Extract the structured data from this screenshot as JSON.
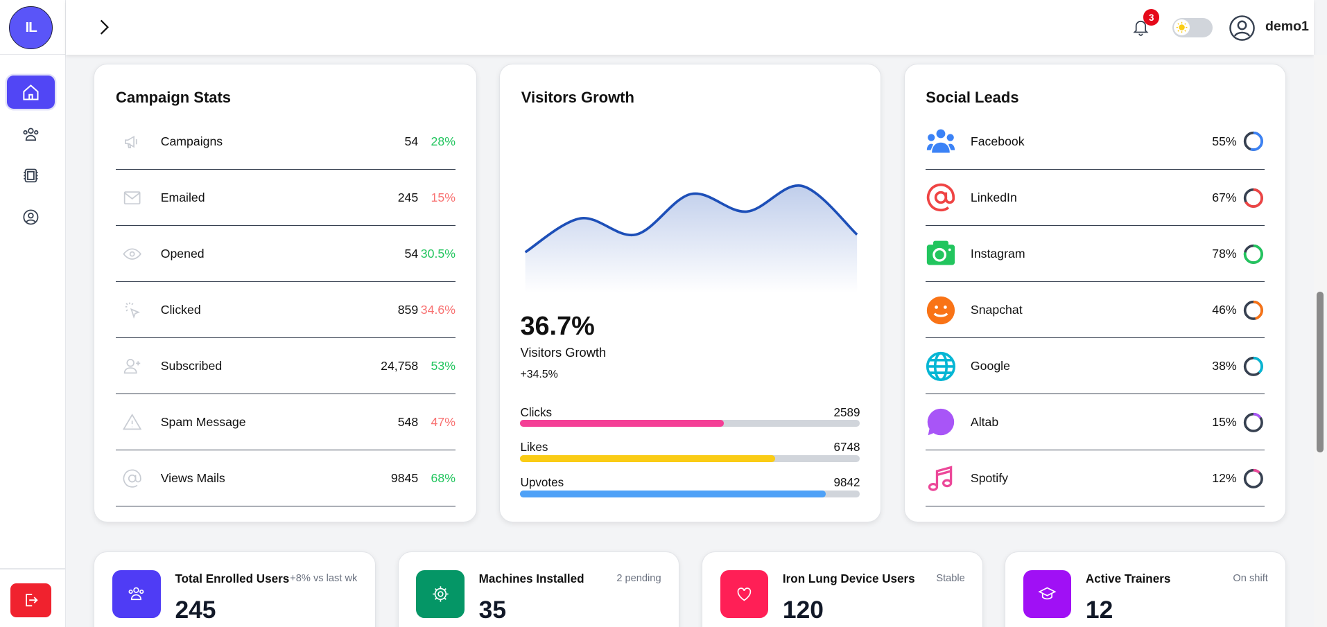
{
  "app": {
    "logo_text": "IL",
    "user_name": "demo1",
    "notification_count": "3",
    "theme": "light"
  },
  "sidebar": {
    "items": [
      {
        "icon": "home-icon",
        "active": true
      },
      {
        "icon": "users-icon"
      },
      {
        "icon": "chip-icon"
      },
      {
        "icon": "user-circle-icon"
      }
    ],
    "logout_icon": "logout-icon"
  },
  "campaign": {
    "title": "Campaign Stats",
    "rows": [
      {
        "icon": "megaphone-icon",
        "label": "Campaigns",
        "value": "54",
        "pct": "28%",
        "color": "#22c55e"
      },
      {
        "icon": "mail-icon",
        "label": "Emailed",
        "value": "245",
        "pct": "15%",
        "color": "#f87171"
      },
      {
        "icon": "eye-icon",
        "label": "Opened",
        "value": "54",
        "pct": "30.5%",
        "color": "#22c55e"
      },
      {
        "icon": "click-icon",
        "label": "Clicked",
        "value": "859",
        "pct": "34.6%",
        "color": "#f87171"
      },
      {
        "icon": "user-plus-icon",
        "label": "Subscribed",
        "value": "24,758",
        "pct": "53%",
        "color": "#22c55e"
      },
      {
        "icon": "warning-icon",
        "label": "Spam Message",
        "value": "548",
        "pct": "47%",
        "color": "#f87171"
      },
      {
        "icon": "at-icon",
        "label": "Views Mails",
        "value": "9845",
        "pct": "68%",
        "color": "#22c55e"
      }
    ]
  },
  "visitors": {
    "title": "Visitors Growth",
    "big": "36.7%",
    "label": "Visitors Growth",
    "delta": "+34.5%",
    "bars": [
      {
        "label": "Clicks",
        "value": "2589",
        "fill": 60,
        "color": "#f43f96"
      },
      {
        "label": "Likes",
        "value": "6748",
        "fill": 75,
        "color": "#facc15"
      },
      {
        "label": "Upvotes",
        "value": "9842",
        "fill": 90,
        "color": "#4ea1f7"
      }
    ]
  },
  "chart_data": {
    "type": "area",
    "values": [
      30,
      55,
      43,
      73,
      60,
      79,
      43
    ],
    "line_color": "#1d4fb8",
    "grid": false
  },
  "social": {
    "title": "Social Leads",
    "rows": [
      {
        "icon": "users-icon",
        "label": "Facebook",
        "pct": 55,
        "pct_text": "55%",
        "color": "#3b82f6"
      },
      {
        "icon": "at-icon",
        "label": "LinkedIn",
        "pct": 67,
        "pct_text": "67%",
        "color": "#ef4444"
      },
      {
        "icon": "camera-icon",
        "label": "Instagram",
        "pct": 78,
        "pct_text": "78%",
        "color": "#22c55e"
      },
      {
        "icon": "smile-icon",
        "label": "Snapchat",
        "pct": 46,
        "pct_text": "46%",
        "color": "#f97316"
      },
      {
        "icon": "globe-icon",
        "label": "Google",
        "pct": 38,
        "pct_text": "38%",
        "color": "#06b6d4"
      },
      {
        "icon": "chat-icon",
        "label": "Altab",
        "pct": 15,
        "pct_text": "15%",
        "color": "#a855f7"
      },
      {
        "icon": "music-icon",
        "label": "Spotify",
        "pct": 12,
        "pct_text": "12%",
        "color": "#ec4899"
      }
    ]
  },
  "stats": [
    {
      "icon": "users-icon",
      "title": "Total Enrolled Users",
      "sub": "+8% vs last wk",
      "value": "245",
      "color": "#4f3cf5"
    },
    {
      "icon": "gear-icon",
      "title": "Machines Installed",
      "sub": "2 pending",
      "value": "35",
      "color": "#059666"
    },
    {
      "icon": "heart-icon",
      "title": "Iron Lung Device Users",
      "sub": "Stable",
      "value": "120",
      "color": "#ff1f56"
    },
    {
      "icon": "graduation-cap-icon",
      "title": "Active Trainers",
      "sub": "On shift",
      "value": "12",
      "color": "#a010f5"
    }
  ]
}
